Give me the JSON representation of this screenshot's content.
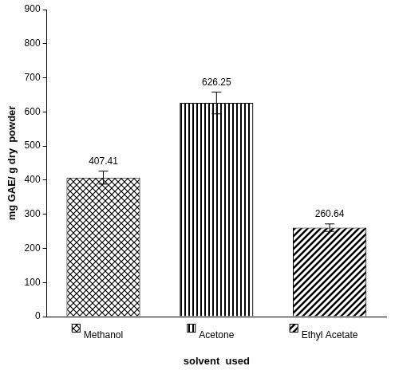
{
  "chart_data": {
    "type": "bar",
    "categories": [
      "Methanol",
      "Acetone",
      "Ethyl Acetate"
    ],
    "values": [
      407.41,
      626.25,
      260.64
    ],
    "errors": [
      19,
      32,
      11
    ],
    "color": "#000000",
    "x_label": "solvent  used",
    "y_label": "mg GAE/ g dry  powder",
    "ylim": [
      0,
      900
    ],
    "yticks": [
      0,
      100,
      200,
      300,
      400,
      500,
      600,
      700,
      800,
      900
    ],
    "grid": false,
    "data_labels": true
  }
}
